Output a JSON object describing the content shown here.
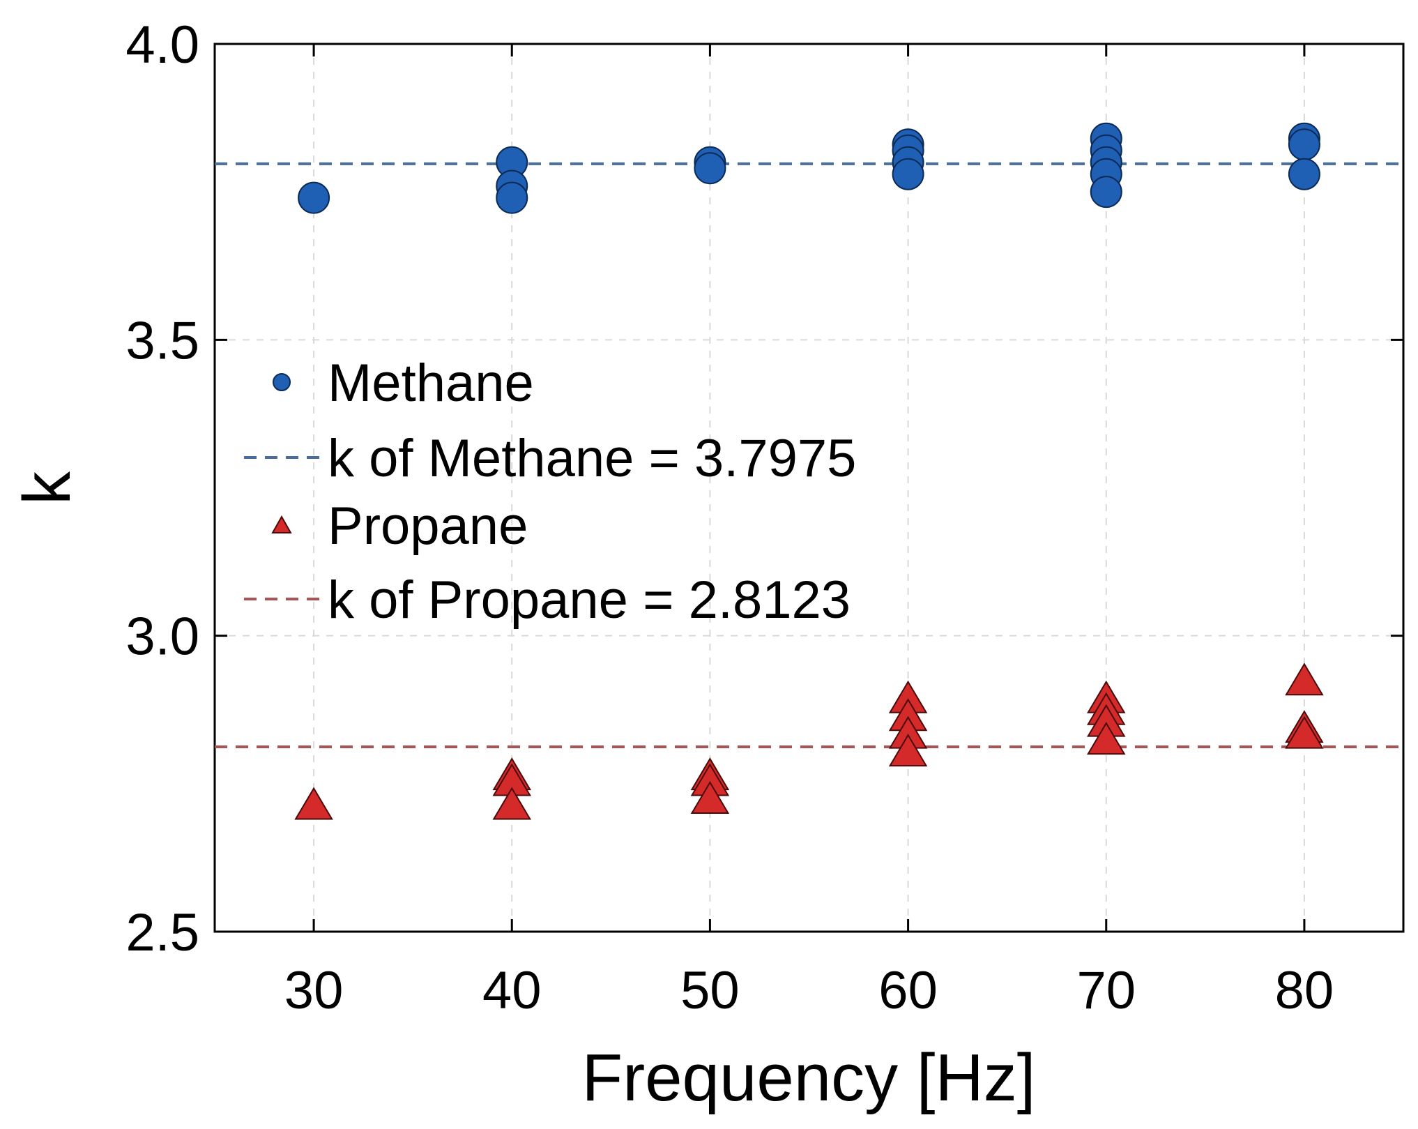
{
  "chart_data": {
    "type": "scatter",
    "title": "",
    "xlabel": "Frequency [Hz]",
    "ylabel": "k",
    "xlim": [
      25,
      85
    ],
    "ylim": [
      2.5,
      4.0
    ],
    "xticks": [
      "30",
      "40",
      "50",
      "60",
      "70",
      "80"
    ],
    "yticks": [
      "2.5",
      "3.0",
      "3.5",
      "4.0"
    ],
    "grid": true,
    "legend_position": "center-left",
    "series": [
      {
        "name": "Methane",
        "marker": "circle",
        "color": "#1f5fb4",
        "points": [
          [
            30,
            3.74
          ],
          [
            40,
            3.8
          ],
          [
            40,
            3.76
          ],
          [
            40,
            3.74
          ],
          [
            50,
            3.8
          ],
          [
            50,
            3.79
          ],
          [
            60,
            3.83
          ],
          [
            60,
            3.82
          ],
          [
            60,
            3.8
          ],
          [
            60,
            3.78
          ],
          [
            70,
            3.84
          ],
          [
            70,
            3.82
          ],
          [
            70,
            3.8
          ],
          [
            70,
            3.78
          ],
          [
            70,
            3.75
          ],
          [
            80,
            3.84
          ],
          [
            80,
            3.83
          ],
          [
            80,
            3.78
          ]
        ]
      },
      {
        "name": "Propane",
        "marker": "triangle",
        "color": "#d42a2a",
        "points": [
          [
            30,
            2.71
          ],
          [
            40,
            2.76
          ],
          [
            40,
            2.75
          ],
          [
            40,
            2.71
          ],
          [
            50,
            2.76
          ],
          [
            50,
            2.75
          ],
          [
            50,
            2.72
          ],
          [
            60,
            2.89
          ],
          [
            60,
            2.86
          ],
          [
            60,
            2.83
          ],
          [
            60,
            2.8
          ],
          [
            70,
            2.89
          ],
          [
            70,
            2.87
          ],
          [
            70,
            2.85
          ],
          [
            70,
            2.82
          ],
          [
            80,
            2.92
          ],
          [
            80,
            2.84
          ],
          [
            80,
            2.83
          ]
        ]
      }
    ],
    "reference_lines": [
      {
        "name": "k of Methane = 3.7975",
        "y": 3.7975,
        "color": "#4a6d99",
        "style": "dashed"
      },
      {
        "name": "k of Propane = 2.8123",
        "y": 2.8123,
        "color": "#a85454",
        "style": "dashed"
      }
    ]
  }
}
